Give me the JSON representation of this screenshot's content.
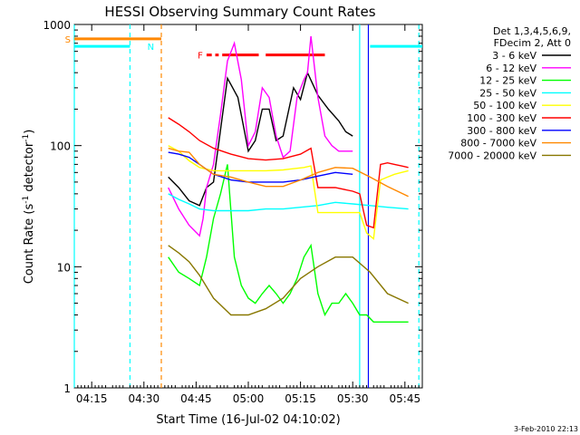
{
  "chart_data": {
    "type": "line",
    "title": "HESSI Observing Summary Count Rates",
    "xlabel": "Start Time (16-Jul-02 04:10:02)",
    "ylabel": "Count Rate (s⁻¹ detector⁻¹)",
    "ylabel_parts": {
      "base": "Count Rate (s",
      "exp1": "-1",
      "mid": " detector",
      "exp2": "-1",
      "end": ")"
    },
    "yscale": "log",
    "xlim": [
      0,
      100
    ],
    "ylim": [
      1,
      1000
    ],
    "x_units": "minutes since 04:10:02",
    "x_ticks": [
      {
        "x": 5,
        "label": "04:15"
      },
      {
        "x": 20,
        "label": "04:30"
      },
      {
        "x": 35,
        "label": "04:45"
      },
      {
        "x": 50,
        "label": "05:00"
      },
      {
        "x": 65,
        "label": "05:15"
      },
      {
        "x": 80,
        "label": "05:30"
      },
      {
        "x": 95,
        "label": "05:45"
      }
    ],
    "y_ticks": [
      {
        "y": 1,
        "label": "1"
      },
      {
        "y": 10,
        "label": "10"
      },
      {
        "y": 100,
        "label": "100"
      },
      {
        "y": 1000,
        "label": "1000"
      }
    ],
    "legend_title": [
      "Det 1,3,4,5,6,9,",
      "FDecim 2, Att 0"
    ],
    "legend_position": "right",
    "grid": false,
    "series": [
      {
        "name": "3 - 6 keV",
        "color": "#000000",
        "x": [
          27,
          30,
          33,
          36,
          38,
          40,
          44,
          47,
          50,
          52,
          54,
          56,
          58,
          60,
          63,
          65,
          67,
          70,
          73,
          76,
          78,
          80
        ],
        "y": [
          55,
          45,
          35,
          32,
          45,
          50,
          360,
          250,
          90,
          110,
          200,
          200,
          110,
          120,
          300,
          240,
          400,
          260,
          200,
          160,
          130,
          120
        ]
      },
      {
        "name": "6 - 12 keV",
        "color": "#ff00ff",
        "x": [
          27,
          30,
          33,
          36,
          37,
          38,
          40,
          42,
          44,
          46,
          48,
          50,
          52,
          54,
          56,
          58,
          60,
          62,
          64,
          66,
          67,
          68,
          70,
          72,
          74,
          76,
          78,
          80
        ],
        "y": [
          45,
          30,
          22,
          18,
          25,
          45,
          70,
          180,
          500,
          700,
          350,
          100,
          130,
          300,
          250,
          120,
          80,
          90,
          250,
          350,
          400,
          800,
          250,
          120,
          100,
          90,
          90,
          90
        ]
      },
      {
        "name": "12 - 25 keV",
        "color": "#00ff00",
        "x": [
          27,
          30,
          33,
          36,
          38,
          40,
          42,
          44,
          46,
          48,
          50,
          52,
          54,
          56,
          58,
          60,
          62,
          64,
          66,
          68,
          70,
          72,
          74,
          76,
          78,
          80,
          82,
          84,
          86,
          88,
          90,
          92,
          94,
          96
        ],
        "y": [
          12,
          9,
          8,
          7,
          12,
          25,
          40,
          70,
          12,
          7,
          5.5,
          5,
          6,
          7,
          6,
          5,
          6,
          8,
          12,
          15,
          6,
          4,
          5,
          5,
          6,
          5,
          4,
          4,
          3.5,
          3.5,
          3.5,
          3.5,
          3.5,
          3.5
        ]
      },
      {
        "name": "25 - 50 keV",
        "color": "#00ffff",
        "x": [
          27,
          30,
          33,
          36,
          40,
          45,
          50,
          55,
          60,
          65,
          70,
          75,
          80,
          85,
          90,
          96
        ],
        "y": [
          40,
          36,
          33,
          30,
          29,
          29,
          29,
          30,
          30,
          31,
          32,
          34,
          33,
          32,
          31,
          30
        ]
      },
      {
        "name": "50 - 100 keV",
        "color": "#ffff00",
        "x": [
          27,
          30,
          33,
          36,
          40,
          45,
          50,
          55,
          60,
          62,
          64,
          66,
          68,
          70,
          75,
          80,
          82,
          84,
          86,
          88,
          90,
          92,
          94,
          96
        ],
        "y": [
          100,
          90,
          75,
          66,
          62,
          62,
          62,
          62,
          63,
          64,
          65,
          66,
          68,
          28,
          28,
          28,
          28,
          19,
          17,
          52,
          55,
          58,
          60,
          62
        ]
      },
      {
        "name": "100 - 300 keV",
        "color": "#ff0000",
        "x": [
          27,
          30,
          33,
          36,
          40,
          45,
          50,
          55,
          60,
          65,
          68,
          70,
          75,
          80,
          82,
          84,
          86,
          88,
          90,
          92,
          94,
          96
        ],
        "y": [
          170,
          150,
          130,
          110,
          95,
          85,
          78,
          76,
          78,
          85,
          95,
          45,
          45,
          42,
          40,
          22,
          21,
          70,
          72,
          70,
          68,
          66
        ]
      },
      {
        "name": "300 - 800 keV",
        "color": "#0000ff",
        "x": [
          27,
          30,
          33,
          36,
          40,
          45,
          50,
          55,
          60,
          65,
          70,
          75,
          80
        ],
        "y": [
          88,
          85,
          80,
          70,
          58,
          52,
          50,
          50,
          50,
          52,
          56,
          60,
          58
        ]
      },
      {
        "name": "800 - 7000 keV",
        "color": "#ff8800",
        "x": [
          27,
          30,
          33,
          36,
          40,
          45,
          50,
          55,
          60,
          65,
          70,
          75,
          80,
          85,
          90,
          96
        ],
        "y": [
          95,
          90,
          88,
          70,
          58,
          55,
          50,
          46,
          46,
          52,
          60,
          66,
          65,
          55,
          46,
          38
        ]
      },
      {
        "name": "7000 - 20000 keV",
        "color": "#887700",
        "x": [
          27,
          30,
          33,
          36,
          40,
          45,
          50,
          55,
          60,
          65,
          70,
          75,
          80,
          85,
          90,
          96
        ],
        "y": [
          15,
          13,
          11,
          8.5,
          5.5,
          4,
          4,
          4.5,
          5.5,
          8,
          10,
          12,
          12,
          9,
          6,
          5
        ]
      }
    ],
    "annotations": [
      {
        "label": "S",
        "color": "#ff8800",
        "x": 0,
        "y": 760
      },
      {
        "label": "N",
        "color": "#00ffff",
        "x": 24,
        "y": 660
      },
      {
        "label": "F",
        "color": "#ff0000",
        "x": 38,
        "y": 560
      }
    ],
    "flag_bars": [
      {
        "color": "#ff8800",
        "segments": [
          [
            0,
            25
          ]
        ],
        "y": 760
      },
      {
        "color": "#00ffff",
        "segments": [
          [
            0,
            16
          ],
          [
            85,
            100
          ]
        ],
        "y": 660
      },
      {
        "color": "#ff0000",
        "segments": [
          [
            38,
            39.5
          ],
          [
            40.5,
            41.5
          ],
          [
            42.5,
            53
          ],
          [
            55,
            72
          ]
        ],
        "y": 560
      }
    ],
    "vlines": [
      {
        "x": 0,
        "color": "#00ffff",
        "style": "solid"
      },
      {
        "x": 16,
        "color": "#00ffff",
        "style": "dashed"
      },
      {
        "x": 25,
        "color": "#ff8800",
        "style": "dashed"
      },
      {
        "x": 82,
        "color": "#00ffff",
        "style": "solid"
      },
      {
        "x": 84.5,
        "color": "#0000ff",
        "style": "solid"
      },
      {
        "x": 99,
        "color": "#00ffff",
        "style": "dashed"
      }
    ],
    "footer_date": "3-Feb-2010 22:13"
  }
}
